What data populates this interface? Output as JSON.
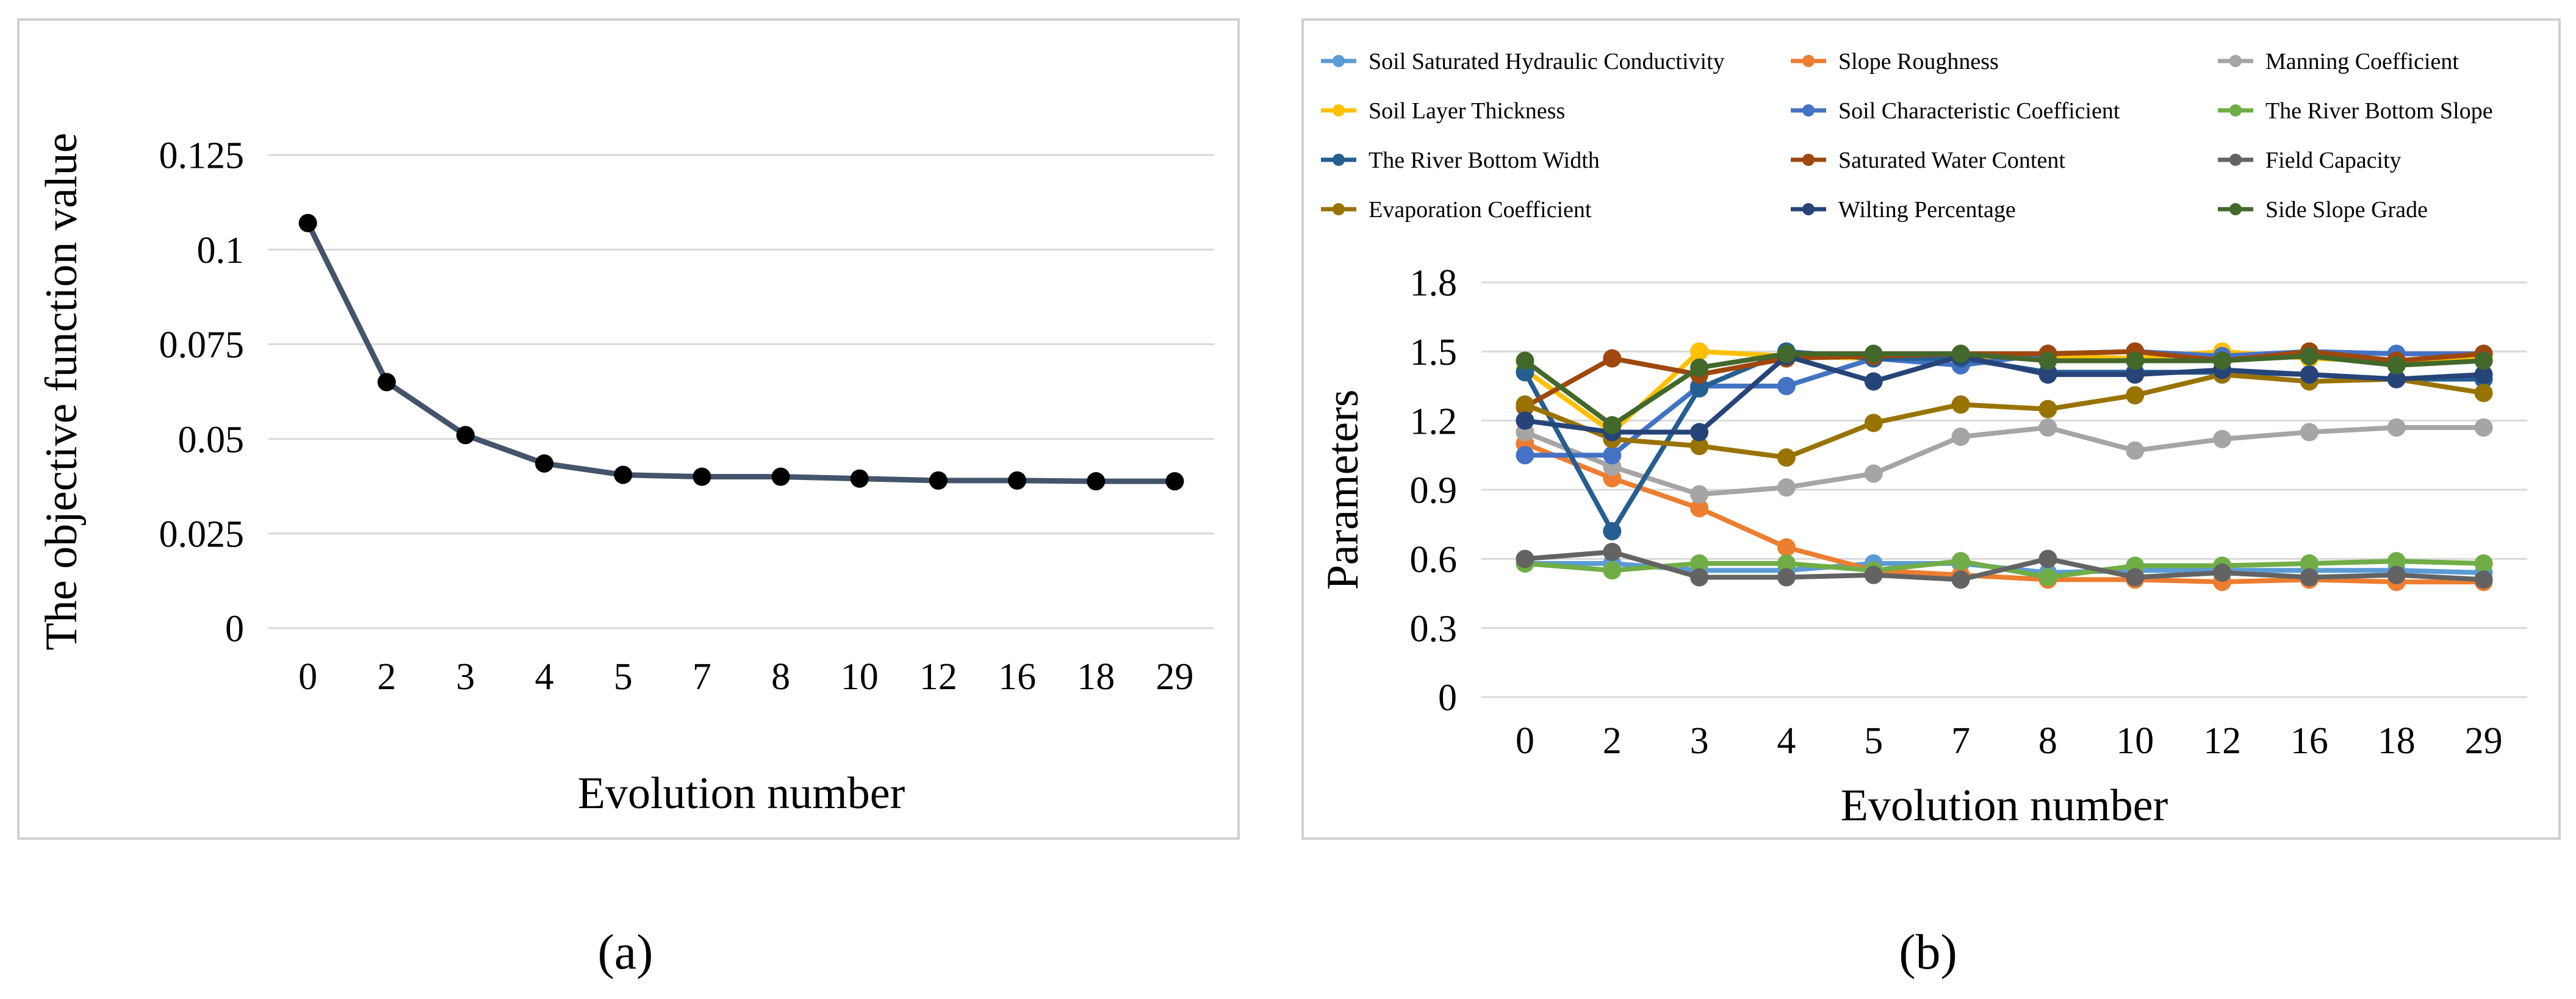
{
  "captions": {
    "a": "(a)",
    "b": "(b)"
  },
  "colors": {
    "panel_border": "#d0d0d0",
    "grid": "#d9d9d9",
    "axis_text": "#000000",
    "line_a": "#44546a",
    "marker_a": "#000000"
  },
  "chart_data": [
    {
      "type": "line",
      "categories": [
        "0",
        "2",
        "3",
        "4",
        "5",
        "7",
        "8",
        "10",
        "12",
        "16",
        "18",
        "29"
      ],
      "series": [
        {
          "values": [
            0.107,
            0.065,
            0.051,
            0.0435,
            0.0405,
            0.04,
            0.04,
            0.0395,
            0.039,
            0.039,
            0.0388,
            0.0388
          ],
          "color": "#44546a"
        }
      ],
      "yticks": [
        "0",
        "0.025",
        "0.05",
        "0.075",
        "0.1",
        "0.125"
      ],
      "xlabel": "Evolution number",
      "ylabel": "The objective function value",
      "ylim": [
        0,
        0.125
      ],
      "grid": true,
      "legend": "none"
    },
    {
      "type": "line",
      "categories": [
        "0",
        "2",
        "3",
        "4",
        "5",
        "7",
        "8",
        "10",
        "12",
        "16",
        "18",
        "29"
      ],
      "series": [
        {
          "name": "Soil Saturated Hydraulic Conductivity",
          "color": "#5b9bd5",
          "values": [
            0.58,
            0.58,
            0.55,
            0.55,
            0.58,
            0.58,
            0.54,
            0.55,
            0.55,
            0.55,
            0.55,
            0.54
          ]
        },
        {
          "name": "Slope Roughness",
          "color": "#ed7d31",
          "values": [
            1.1,
            0.95,
            0.82,
            0.65,
            0.55,
            0.53,
            0.51,
            0.51,
            0.5,
            0.51,
            0.5,
            0.5
          ]
        },
        {
          "name": "Manning Coefficient",
          "color": "#a5a5a5",
          "values": [
            1.15,
            1.0,
            0.88,
            0.91,
            0.97,
            1.13,
            1.17,
            1.07,
            1.12,
            1.15,
            1.17,
            1.17
          ]
        },
        {
          "name": "Soil Layer Thickness",
          "color": "#ffc000",
          "values": [
            1.42,
            1.15,
            1.5,
            1.48,
            1.47,
            1.46,
            1.48,
            1.47,
            1.5,
            1.47,
            1.46,
            1.47
          ]
        },
        {
          "name": "Soil Characteristic Coefficient",
          "color": "#4472c4",
          "values": [
            1.05,
            1.05,
            1.35,
            1.35,
            1.47,
            1.44,
            1.49,
            1.5,
            1.48,
            1.5,
            1.49,
            1.49
          ]
        },
        {
          "name": "The River Bottom Slope",
          "color": "#70ad47",
          "values": [
            0.58,
            0.55,
            0.58,
            0.58,
            0.55,
            0.59,
            0.52,
            0.57,
            0.57,
            0.58,
            0.59,
            0.58
          ]
        },
        {
          "name": "The River Bottom Width",
          "color": "#255e91",
          "values": [
            1.41,
            0.72,
            1.34,
            1.5,
            1.47,
            1.47,
            1.41,
            1.41,
            1.41,
            1.4,
            1.38,
            1.38
          ]
        },
        {
          "name": "Saturated Water Content",
          "color": "#9e480e",
          "values": [
            1.26,
            1.47,
            1.4,
            1.47,
            1.48,
            1.49,
            1.49,
            1.5,
            1.46,
            1.5,
            1.46,
            1.49
          ]
        },
        {
          "name": "Field Capacity",
          "color": "#636363",
          "values": [
            0.6,
            0.63,
            0.52,
            0.52,
            0.53,
            0.51,
            0.6,
            0.52,
            0.54,
            0.52,
            0.53,
            0.51
          ]
        },
        {
          "name": "Evaporation Coefficient",
          "color": "#997300",
          "values": [
            1.27,
            1.12,
            1.09,
            1.04,
            1.19,
            1.27,
            1.25,
            1.31,
            1.4,
            1.37,
            1.38,
            1.32
          ]
        },
        {
          "name": "Wilting Percentage",
          "color": "#264478",
          "values": [
            1.2,
            1.15,
            1.15,
            1.48,
            1.37,
            1.48,
            1.4,
            1.4,
            1.42,
            1.4,
            1.38,
            1.4
          ]
        },
        {
          "name": "Side Slope Grade",
          "color": "#43682b",
          "values": [
            1.46,
            1.18,
            1.43,
            1.49,
            1.49,
            1.49,
            1.46,
            1.46,
            1.46,
            1.48,
            1.44,
            1.46
          ]
        }
      ],
      "yticks": [
        "0",
        "0.3",
        "0.6",
        "0.9",
        "1.2",
        "1.5",
        "1.8"
      ],
      "xlabel": "Evolution number",
      "ylabel": "Parameters",
      "ylim": [
        0,
        1.8
      ],
      "grid": true,
      "legend": "top"
    }
  ]
}
